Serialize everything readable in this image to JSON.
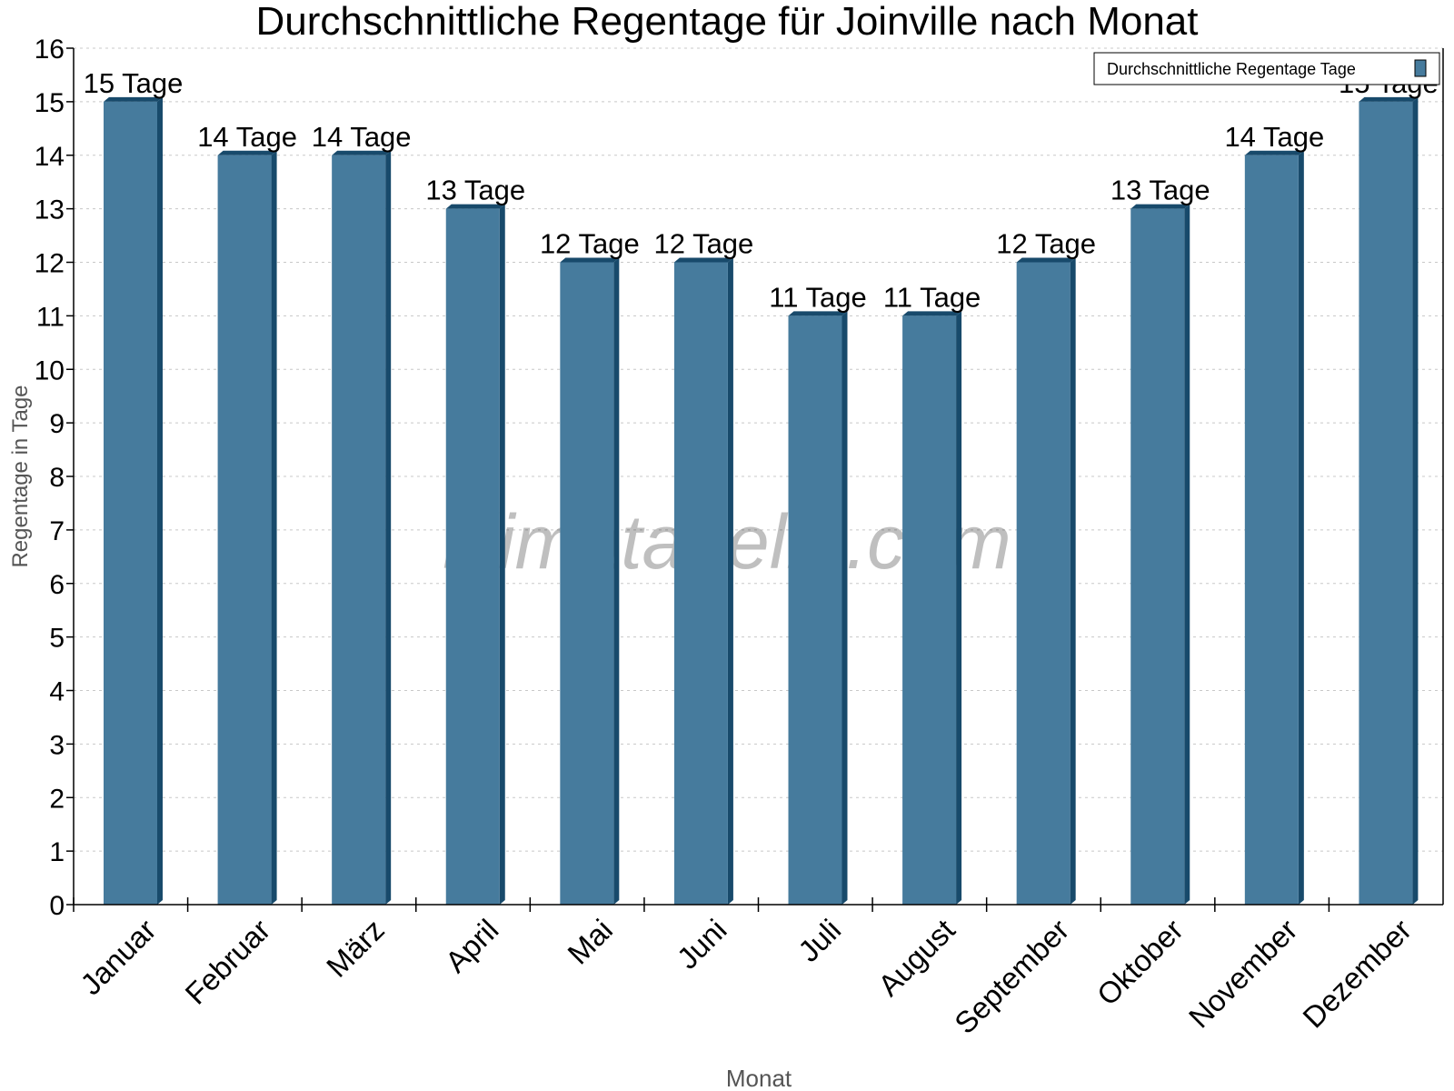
{
  "chart_data": {
    "type": "bar",
    "title": "Durchschnittliche Regentage für Joinville nach Monat",
    "xlabel": "Monat",
    "ylabel": "Regentage in Tage",
    "categories": [
      "Januar",
      "Februar",
      "März",
      "April",
      "Mai",
      "Juni",
      "Juli",
      "August",
      "September",
      "Oktober",
      "November",
      "Dezember"
    ],
    "series": [
      {
        "name": "Durchschnittliche Regentage Tage",
        "values": [
          15,
          14,
          14,
          13,
          12,
          12,
          11,
          11,
          12,
          13,
          14,
          15
        ],
        "color": "#467b9d",
        "side_color": "#184a6b"
      }
    ],
    "data_labels": [
      "15 Tage",
      "14 Tage",
      "14 Tage",
      "13 Tage",
      "12 Tage",
      "12 Tage",
      "11 Tage",
      "11 Tage",
      "12 Tage",
      "13 Tage",
      "14 Tage",
      "15 Tage"
    ],
    "ylim": [
      0,
      16
    ],
    "yticks": [
      0,
      1,
      2,
      3,
      4,
      5,
      6,
      7,
      8,
      9,
      10,
      11,
      12,
      13,
      14,
      15,
      16
    ],
    "grid": true,
    "legend_position": "top-right",
    "watermark": "klimatabelle.com"
  }
}
